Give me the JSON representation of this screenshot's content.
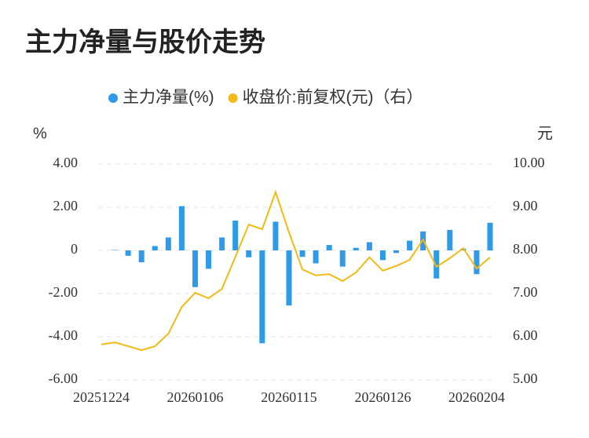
{
  "chart_data": {
    "type": "bar_line",
    "title": "主力净量与股价走势",
    "y_label": "%",
    "y2_label": "元",
    "categories": [
      "20251224",
      null,
      null,
      null,
      null,
      null,
      null,
      "20260106",
      null,
      null,
      null,
      null,
      null,
      null,
      "20260115",
      null,
      null,
      null,
      null,
      null,
      null,
      "20260126",
      null,
      null,
      null,
      null,
      null,
      null,
      "20260204",
      null
    ],
    "series": [
      {
        "name": "主力净量(%)",
        "type": "bar",
        "color": "#2e9ae8",
        "values": [
          0,
          0.02,
          -0.25,
          -0.55,
          0.2,
          0.6,
          2.05,
          -1.7,
          -0.85,
          0.6,
          1.38,
          -0.32,
          -4.3,
          1.33,
          -2.55,
          -0.3,
          -0.6,
          0.25,
          -0.75,
          0.12,
          0.38,
          -0.45,
          -0.12,
          0.45,
          0.88,
          -1.3,
          0.95,
          0.08,
          -1.1,
          1.28
        ]
      },
      {
        "name": "收盘价:前复权(元)（右）",
        "type": "line",
        "axis": "y2",
        "color": "#f5b914",
        "values": [
          5.82,
          5.87,
          5.78,
          5.69,
          5.78,
          6.07,
          6.69,
          7.02,
          6.89,
          7.11,
          7.85,
          8.6,
          8.49,
          9.35,
          8.42,
          7.56,
          7.42,
          7.45,
          7.29,
          7.49,
          7.84,
          7.53,
          7.64,
          7.78,
          8.25,
          7.62,
          7.82,
          8.05,
          7.58,
          7.84
        ]
      }
    ],
    "ylim": [
      -6,
      4
    ],
    "yticks": [
      {
        "value": 4,
        "label": "4.00"
      },
      {
        "value": 2,
        "label": "2.00"
      },
      0,
      {
        "value": -2,
        "label": "-2.00"
      },
      {
        "value": -4,
        "label": "-4.00"
      },
      {
        "value": -6,
        "label": "-6.00"
      }
    ],
    "y2lim": [
      5,
      10
    ],
    "y2ticks": [
      {
        "value": 10,
        "label": "10.00"
      },
      {
        "value": 9,
        "label": "9.00"
      },
      {
        "value": 8,
        "label": "8.00"
      },
      {
        "value": 7,
        "label": "7.00"
      },
      {
        "value": 6,
        "label": "6.00"
      },
      {
        "value": 5,
        "label": "5.00"
      }
    ],
    "grid": true,
    "legend": "top"
  }
}
